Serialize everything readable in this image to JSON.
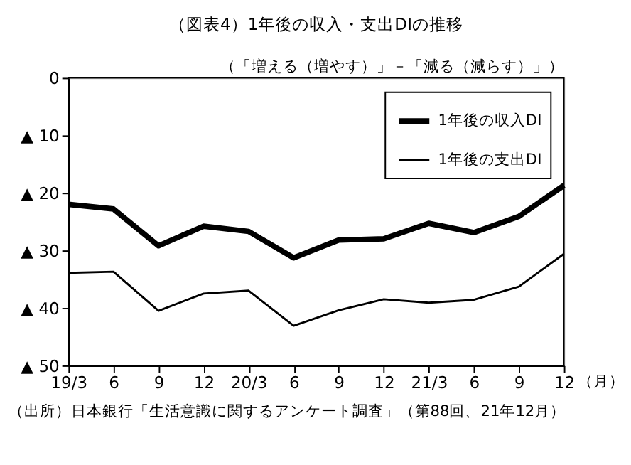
{
  "chart_data": {
    "type": "line",
    "title": "（図表4）1年後の収入・支出DIの推移",
    "subtitle": "（「増える（増やす）」－「減る（減らす）」）",
    "xlabel": "（月）",
    "categories": [
      "19/3",
      "6",
      "9",
      "12",
      "20/3",
      "6",
      "9",
      "12",
      "21/3",
      "6",
      "9",
      "12"
    ],
    "series": [
      {
        "name": "1年後の収入DI",
        "color": "#000000",
        "values": [
          -22.0,
          -22.8,
          -29.2,
          -25.8,
          -26.7,
          -31.3,
          -28.2,
          -28.0,
          -25.3,
          -26.9,
          -24.1,
          -18.7
        ]
      },
      {
        "name": "1年後の支出DI",
        "color": "#000000",
        "values": [
          -33.9,
          -33.7,
          -40.5,
          -37.5,
          -37.0,
          -43.1,
          -40.4,
          -38.5,
          -39.1,
          -38.6,
          -36.3,
          -30.6
        ]
      }
    ],
    "ylim": [
      -50,
      0
    ],
    "yticks": [
      0,
      {
        "value": -10,
        "label": "▲ 10"
      },
      {
        "value": -20,
        "label": "▲ 20"
      },
      {
        "value": -30,
        "label": "▲ 30"
      },
      {
        "value": -40,
        "label": "▲ 40"
      },
      {
        "value": -50,
        "label": "▲ 50"
      }
    ],
    "grid": false,
    "legend": "top right",
    "marker": "none",
    "line_style": "solid",
    "annotations": [
      "（出所）日本銀行「生活意識に関するアンケート調査」（第88回、21年12月）"
    ]
  }
}
